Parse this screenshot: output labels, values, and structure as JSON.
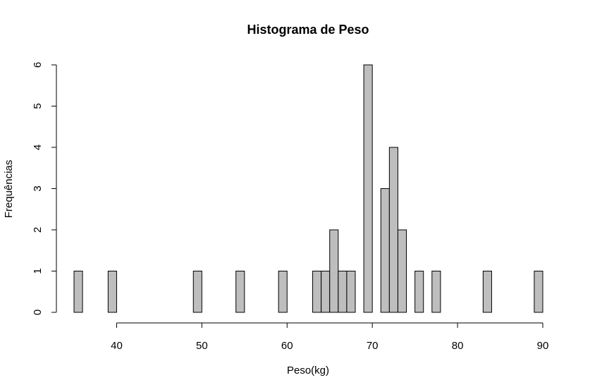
{
  "chart_data": {
    "type": "bar",
    "title": "Histograma de Peso",
    "xlabel": "Peso(kg)",
    "ylabel": "Frequências",
    "bin_width": 1,
    "bin_start": 35,
    "bin_end": 90,
    "counts": [
      1,
      0,
      0,
      0,
      1,
      0,
      0,
      0,
      0,
      0,
      0,
      0,
      0,
      0,
      1,
      0,
      0,
      0,
      0,
      1,
      0,
      0,
      0,
      0,
      1,
      0,
      0,
      0,
      1,
      1,
      2,
      1,
      1,
      0,
      6,
      0,
      3,
      4,
      2,
      0,
      1,
      0,
      1,
      0,
      0,
      0,
      0,
      0,
      1,
      0,
      0,
      0,
      0,
      0,
      1
    ],
    "xlim": [
      35,
      90
    ],
    "ylim": [
      0,
      6
    ],
    "xticks": [
      40,
      50,
      60,
      70,
      80,
      90
    ],
    "yticks": [
      0,
      1,
      2,
      3,
      4,
      5,
      6
    ],
    "grid": false
  }
}
